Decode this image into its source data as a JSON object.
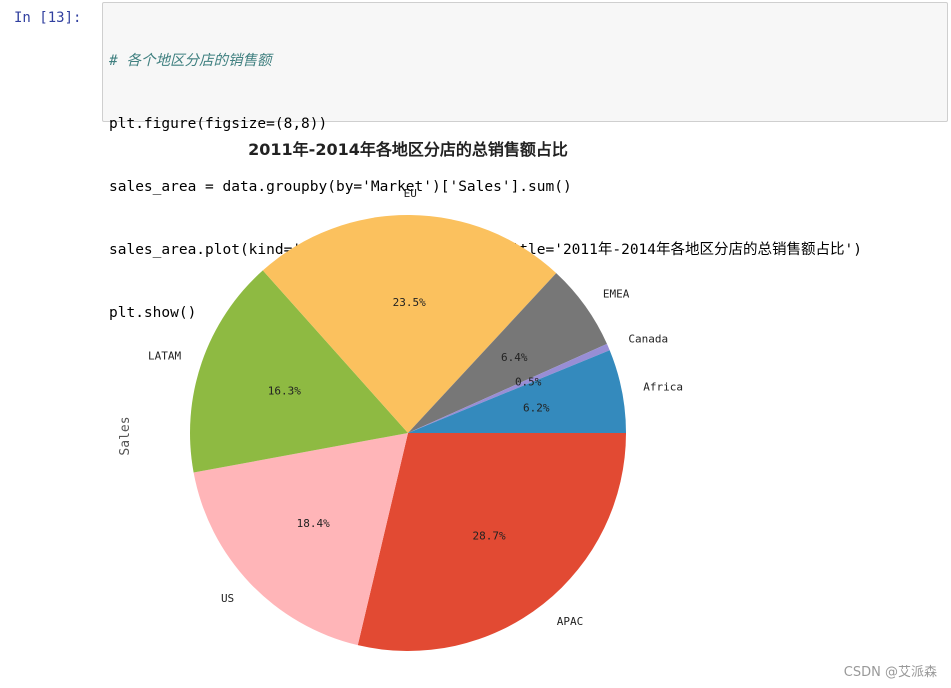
{
  "cell": {
    "prompt": "In  [13]:",
    "lines": [
      {
        "comment": "# 各个地区分店的销售额"
      },
      {
        "text": "plt.figure(figsize=(8,8))"
      },
      {
        "text": "sales_area = data.groupby(by='Market')['Sales'].sum()"
      },
      {
        "text": "sales_area.plot(kind='pie',autopct=\"%1.1f%%\",title='2011年-2014年各地区分店的总销售额占比')"
      },
      {
        "text": "plt.show()"
      }
    ]
  },
  "chart_data": {
    "type": "pie",
    "title": "2011年-2014年各地区分店的总销售额占比",
    "ylabel": "Sales",
    "labels": [
      "APAC",
      "US",
      "LATAM",
      "EU",
      "EMEA",
      "Canada",
      "Africa"
    ],
    "values": [
      28.7,
      18.4,
      16.3,
      23.5,
      6.4,
      0.5,
      6.2
    ],
    "pct_labels": [
      "28.7%",
      "18.4%",
      "16.3%",
      "23.5%",
      "6.4%",
      "0.5%",
      "6.2%"
    ],
    "colors": [
      "#e24a33",
      "#ffb5b8",
      "#8eba42",
      "#fbc15e",
      "#777777",
      "#988ed5",
      "#348abd"
    ],
    "start_angle_deg": 0,
    "direction": "clockwise"
  },
  "watermark": "CSDN @艾派森"
}
